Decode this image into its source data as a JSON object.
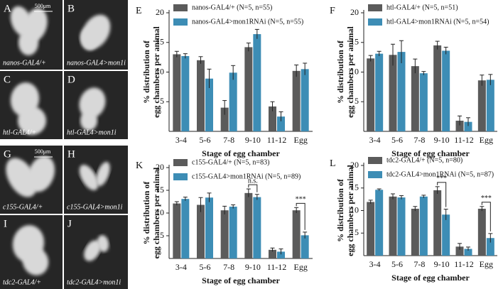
{
  "panels": [
    {
      "letter": "A",
      "caption": "nanos-GAL4/+",
      "scale": "500μm"
    },
    {
      "letter": "B",
      "caption": "nanos-GAL4>mon1i"
    },
    {
      "letter": "C",
      "caption": "htl-GAL4/+"
    },
    {
      "letter": "D",
      "caption": "htl-GAL4>mon1i"
    },
    {
      "letter": "G",
      "caption": "c155-GAL4/+",
      "scale": "500μm"
    },
    {
      "letter": "H",
      "caption": "c155-GAL4>mon1i"
    },
    {
      "letter": "I",
      "caption": "tdc2-GAL4/+"
    },
    {
      "letter": "J",
      "caption": "tdc2-GAL4>mon1i"
    }
  ],
  "chart_data": [
    {
      "type": "bar",
      "label": "E",
      "xlabel": "Stage of egg chamber",
      "ylabel": [
        "% distribution of",
        "egg chambers per animal"
      ],
      "categories": [
        "3-4",
        "5-6",
        "7-8",
        "9-10",
        "11-12",
        "Egg"
      ],
      "ylim": [
        0,
        20
      ],
      "yticks": [
        5,
        10,
        15,
        20
      ],
      "series": [
        {
          "name": "nanos-GAL4/+  (N=5, n=55)",
          "color": "#5b5b5b",
          "values": [
            13,
            12,
            4,
            14.2,
            4.2,
            10.2
          ],
          "errors": [
            0.5,
            0.6,
            1.2,
            0.7,
            0.8,
            1
          ]
        },
        {
          "name": "nanos-GAL4>mon1RNAi  (N=5, n=55)",
          "color": "#3d8db5",
          "values": [
            12.7,
            8.9,
            9.9,
            16.4,
            2.5,
            10.5
          ],
          "errors": [
            0.4,
            1.6,
            1.2,
            0.8,
            0.8,
            1
          ]
        }
      ],
      "annotations": []
    },
    {
      "type": "bar",
      "label": "F",
      "xlabel": "Stage of egg chamber",
      "ylabel": [
        "% distribution of",
        "egg chambers per animal"
      ],
      "categories": [
        "3-4",
        "5-6",
        "7-8",
        "9-10",
        "11-12",
        "Egg"
      ],
      "ylim": [
        0,
        20
      ],
      "yticks": [
        5,
        10,
        15,
        20
      ],
      "series": [
        {
          "name": "htl-GAL4/+  (N=5, n=51)",
          "color": "#5b5b5b",
          "values": [
            12.3,
            12.9,
            11,
            14.5,
            1.8,
            8.6
          ],
          "errors": [
            0.5,
            1.8,
            1.2,
            0.7,
            0.8,
            0.9
          ]
        },
        {
          "name": "htl-GAL4>mon1RNAi  (N=5, n=54)",
          "color": "#3d8db5",
          "values": [
            13.1,
            13.4,
            9.8,
            13.6,
            1.6,
            8.7
          ],
          "errors": [
            0.4,
            1.9,
            0.3,
            0.6,
            0.7,
            0.9
          ]
        }
      ],
      "annotations": []
    },
    {
      "type": "bar",
      "label": "K",
      "xlabel": "Stage of egg chamber",
      "ylabel": [
        "% distribution of",
        "egg chambers per animal"
      ],
      "categories": [
        "3-4",
        "5-6",
        "7-8",
        "9-10",
        "11-12",
        "Egg"
      ],
      "ylim": [
        0,
        20
      ],
      "yticks": [
        5,
        10,
        15,
        20
      ],
      "series": [
        {
          "name": "c155-GAL4/+  (N=5, n=83)",
          "color": "#5b5b5b",
          "values": [
            12.1,
            11.8,
            10.6,
            14.4,
            1.9,
            10.6
          ],
          "errors": [
            0.4,
            1.6,
            0.9,
            0.9,
            0.4,
            0.6
          ]
        },
        {
          "name": "c155-GAL4>mon1RNAi  (N=5, n=89)",
          "color": "#3d8db5",
          "values": [
            13.1,
            13.4,
            11.4,
            13.5,
            1.5,
            5.1
          ],
          "errors": [
            0.4,
            1,
            0.4,
            0.6,
            0.6,
            0.7
          ]
        }
      ],
      "annotations": [
        {
          "text": "n.s.",
          "category": "9-10"
        },
        {
          "text": "***",
          "category": "Egg"
        }
      ]
    },
    {
      "type": "bar",
      "label": "L",
      "xlabel": "Stage of egg chamber",
      "ylabel": [
        "% distribution of",
        "egg chambers per animal"
      ],
      "categories": [
        "3-4",
        "5-6",
        "7-8",
        "9-10",
        "11-12",
        "Egg"
      ],
      "ylim": [
        0,
        20
      ],
      "yticks": [
        5,
        10,
        15,
        20
      ],
      "series": [
        {
          "name": "tdc2-GAL4/+  (N=5, n=80)",
          "color": "#5b5b5b",
          "values": [
            11.9,
            13.1,
            10.4,
            14.5,
            2,
            10.4
          ],
          "errors": [
            0.4,
            0.6,
            0.5,
            0.8,
            0.7,
            0.5
          ]
        },
        {
          "name": "tdc2-GAL4>mon1RNAi  (N=5, n=87)",
          "color": "#3d8db5",
          "values": [
            14.6,
            12.9,
            13.1,
            9.1,
            1.5,
            3.9
          ],
          "errors": [
            0.2,
            0.4,
            0.3,
            1.2,
            0.4,
            1
          ]
        }
      ],
      "annotations": [
        {
          "text": "***",
          "category": "9-10"
        },
        {
          "text": "***",
          "category": "Egg"
        }
      ]
    }
  ]
}
